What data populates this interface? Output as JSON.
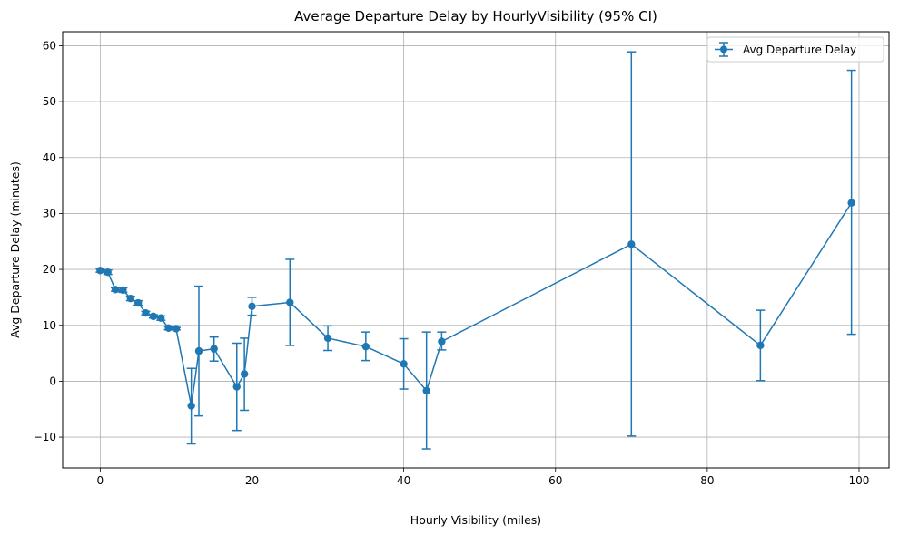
{
  "chart_data": {
    "type": "line",
    "title": "Average Departure Delay by HourlyVisibility (95% CI)",
    "xlabel": "Hourly Visibility (miles)",
    "ylabel": "Avg Departure Delay (minutes)",
    "xlim": [
      -4.95,
      103.95
    ],
    "ylim": [
      -15.5,
      62.5
    ],
    "xticks": [
      0,
      20,
      40,
      60,
      80,
      100
    ],
    "yticks": [
      -10,
      0,
      10,
      20,
      30,
      40,
      50,
      60
    ],
    "grid": true,
    "legend_position": "top-right",
    "series": [
      {
        "name": "Avg Departure Delay",
        "color": "#1f77b4",
        "error_bars": true,
        "points": [
          {
            "x": 0,
            "y": 19.8,
            "lo": 19.5,
            "hi": 20.1
          },
          {
            "x": 1,
            "y": 19.5,
            "lo": 19.1,
            "hi": 19.9
          },
          {
            "x": 2,
            "y": 16.4,
            "lo": 16.1,
            "hi": 16.7
          },
          {
            "x": 3,
            "y": 16.3,
            "lo": 15.9,
            "hi": 16.7
          },
          {
            "x": 4,
            "y": 14.8,
            "lo": 14.4,
            "hi": 15.2
          },
          {
            "x": 5,
            "y": 14.0,
            "lo": 13.6,
            "hi": 14.4
          },
          {
            "x": 6,
            "y": 12.2,
            "lo": 11.9,
            "hi": 12.5
          },
          {
            "x": 7,
            "y": 11.6,
            "lo": 11.3,
            "hi": 11.9
          },
          {
            "x": 8,
            "y": 11.3,
            "lo": 10.9,
            "hi": 11.7
          },
          {
            "x": 9,
            "y": 9.5,
            "lo": 9.2,
            "hi": 9.8
          },
          {
            "x": 10,
            "y": 9.4,
            "lo": 9.2,
            "hi": 9.6
          },
          {
            "x": 12,
            "y": -4.4,
            "lo": -11.2,
            "hi": 2.3
          },
          {
            "x": 13,
            "y": 5.4,
            "lo": -6.2,
            "hi": 17.0
          },
          {
            "x": 15,
            "y": 5.8,
            "lo": 3.6,
            "hi": 7.9
          },
          {
            "x": 18,
            "y": -1.0,
            "lo": -8.8,
            "hi": 6.8
          },
          {
            "x": 19,
            "y": 1.3,
            "lo": -5.2,
            "hi": 7.7
          },
          {
            "x": 20,
            "y": 13.4,
            "lo": 11.8,
            "hi": 15.0
          },
          {
            "x": 25,
            "y": 14.1,
            "lo": 6.4,
            "hi": 21.8
          },
          {
            "x": 30,
            "y": 7.7,
            "lo": 5.5,
            "hi": 9.9
          },
          {
            "x": 35,
            "y": 6.2,
            "lo": 3.7,
            "hi": 8.8
          },
          {
            "x": 40,
            "y": 3.1,
            "lo": -1.4,
            "hi": 7.6
          },
          {
            "x": 43,
            "y": -1.7,
            "lo": -12.1,
            "hi": 8.8
          },
          {
            "x": 45,
            "y": 7.1,
            "lo": 5.6,
            "hi": 8.8
          },
          {
            "x": 70,
            "y": 24.5,
            "lo": -9.8,
            "hi": 58.9
          },
          {
            "x": 87,
            "y": 6.4,
            "lo": 0.1,
            "hi": 12.7
          },
          {
            "x": 99,
            "y": 31.9,
            "lo": 8.4,
            "hi": 55.6
          }
        ]
      }
    ]
  }
}
